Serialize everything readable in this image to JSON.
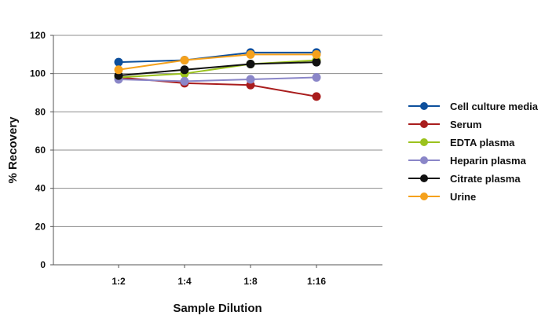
{
  "chart_data": {
    "type": "line",
    "title": "",
    "xlabel": "Sample Dilution",
    "ylabel": "% Recovery",
    "categories": [
      "1:2",
      "1:4",
      "1:8",
      "1:16"
    ],
    "ylim": [
      0,
      120
    ],
    "yticks": [
      0,
      20,
      40,
      60,
      80,
      100,
      120
    ],
    "grid": true,
    "legend_position": "right",
    "series": [
      {
        "name": "Cell culture media",
        "color": "#0d4f9c",
        "values": [
          106,
          107,
          111,
          111
        ]
      },
      {
        "name": "Serum",
        "color": "#a91d1d",
        "values": [
          98,
          95,
          94,
          88
        ]
      },
      {
        "name": "EDTA plasma",
        "color": "#9bc21d",
        "values": [
          98,
          100,
          105,
          107
        ]
      },
      {
        "name": "Heparin plasma",
        "color": "#8a86c8",
        "values": [
          97,
          96,
          97,
          98
        ]
      },
      {
        "name": "Citrate plasma",
        "color": "#111111",
        "values": [
          99,
          102,
          105,
          106
        ]
      },
      {
        "name": "Urine",
        "color": "#f5a11c",
        "values": [
          102,
          107,
          110,
          110
        ]
      }
    ]
  }
}
